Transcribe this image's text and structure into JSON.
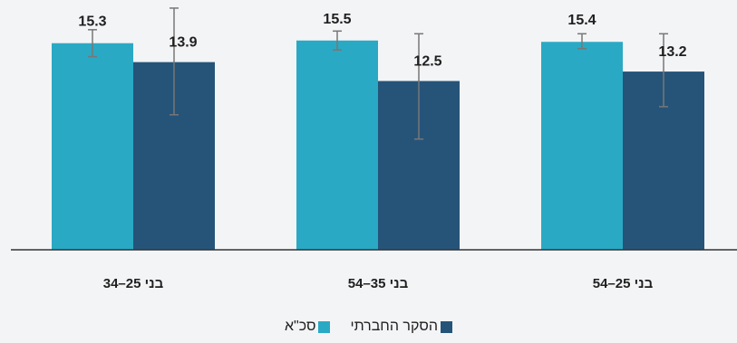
{
  "chart_data": {
    "type": "bar",
    "categories": [
      "בני 25–34",
      "בני 35–54",
      "בני 25–54"
    ],
    "category_labels_display": [
      "34–25 בני",
      "54–35 בני",
      "54–25 בני"
    ],
    "series": [
      {
        "name": "סכ\"א",
        "color": "#2aa9c4",
        "values": [
          15.3,
          15.5,
          15.4
        ],
        "error_low": [
          14.3,
          14.8,
          14.9
        ],
        "error_high": [
          16.3,
          16.2,
          16.0
        ],
        "labels": [
          "15.3",
          "15.5",
          "15.4"
        ]
      },
      {
        "name": "הסקר החברתי",
        "color": "#265479",
        "values": [
          13.9,
          12.5,
          13.2
        ],
        "error_low": [
          10.0,
          8.2,
          10.6
        ],
        "error_high": [
          17.9,
          16.0,
          16.0
        ],
        "labels": [
          "13.9",
          "12.5",
          "13.2"
        ]
      }
    ],
    "ylim": [
      0,
      18.5
    ],
    "title": "",
    "xlabel": "",
    "ylabel": "",
    "grid": false,
    "legend_position": "bottom-center"
  },
  "legend": {
    "items": [
      {
        "label": "הסקר החברתי",
        "color": "#265479"
      },
      {
        "label": "סכ\"א",
        "color": "#2aa9c4"
      }
    ]
  }
}
